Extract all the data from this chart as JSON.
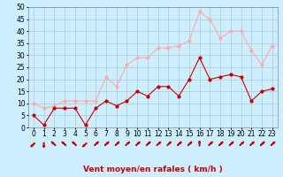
{
  "x": [
    0,
    1,
    2,
    3,
    4,
    5,
    6,
    7,
    8,
    9,
    10,
    11,
    12,
    13,
    14,
    15,
    16,
    17,
    18,
    19,
    20,
    21,
    22,
    23
  ],
  "wind_mean": [
    5,
    1,
    8,
    8,
    8,
    1,
    8,
    11,
    9,
    11,
    15,
    13,
    17,
    17,
    13,
    20,
    29,
    20,
    21,
    22,
    21,
    11,
    15,
    16
  ],
  "wind_gust": [
    10,
    8,
    9,
    11,
    11,
    11,
    11,
    21,
    17,
    26,
    29,
    29,
    33,
    33,
    34,
    36,
    48,
    45,
    37,
    40,
    40,
    32,
    26,
    34
  ],
  "mean_color": "#cc0000",
  "gust_color": "#ffaaaa",
  "bg_color": "#cceeff",
  "grid_color": "#aacccc",
  "xlabel": "Vent moyen/en rafales ( km/h )",
  "xlabel_color": "#cc0000",
  "ylim": [
    0,
    50
  ],
  "yticks": [
    0,
    5,
    10,
    15,
    20,
    25,
    30,
    35,
    40,
    45,
    50
  ],
  "axis_fontsize": 5.5,
  "label_fontsize": 6.5,
  "arrow_angles": [
    225,
    180,
    315,
    315,
    315,
    225,
    45,
    45,
    45,
    45,
    45,
    45,
    45,
    45,
    45,
    45,
    0,
    45,
    45,
    45,
    45,
    45,
    45,
    45
  ]
}
